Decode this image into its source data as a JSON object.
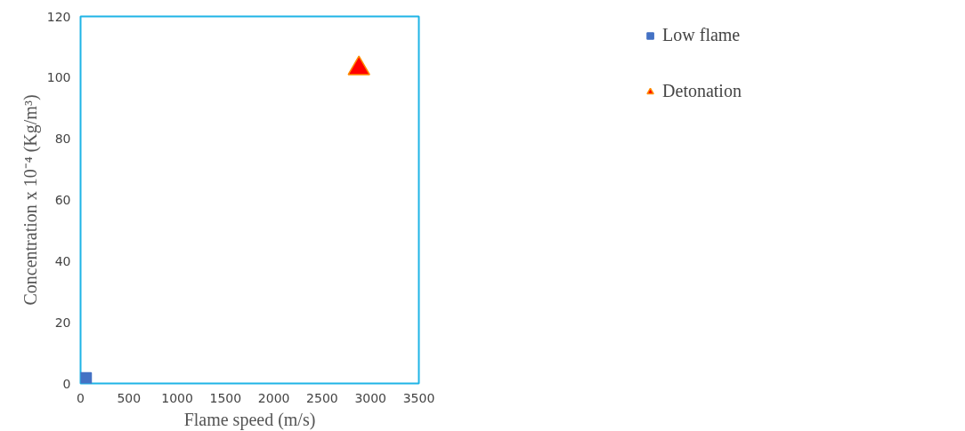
{
  "chart_data": {
    "type": "scatter",
    "xlabel": "Flame speed (m/s)",
    "ylabel": "Concentration x 10⁻⁴ (Kg/m³)",
    "xlim": [
      0,
      3500
    ],
    "xticks": [
      0,
      500,
      1000,
      1500,
      2000,
      2500,
      3000,
      3500
    ],
    "ylim": [
      0,
      120
    ],
    "yticks": [
      0,
      20,
      40,
      60,
      80,
      100,
      120
    ],
    "grid": false,
    "legend": "right",
    "series": [
      {
        "name": "Low flame",
        "color": "#4472c4",
        "marker": "square",
        "x": [
          0
        ],
        "values": [
          0
        ]
      },
      {
        "name": "Detonation",
        "color": "#ff0000",
        "marker": "triangle",
        "x": [
          2880
        ],
        "values": [
          103
        ]
      }
    ]
  }
}
